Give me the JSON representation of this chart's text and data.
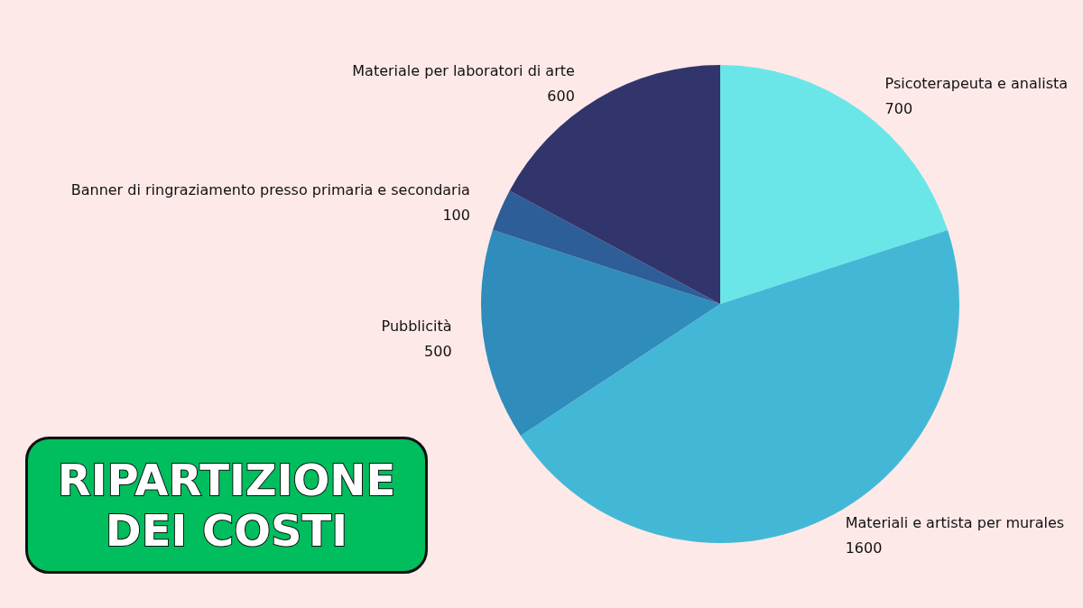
{
  "chart_data": {
    "type": "pie",
    "title": "RIPARTIZIONE DEI COSTI",
    "categories": [
      "Psicoterapeuta e analista",
      "Materiali e artista per murales",
      "Pubblicità",
      "Banner di ringraziamento presso primaria e secondaria",
      "Materiale per laboratori di arte"
    ],
    "values": [
      700,
      1600,
      500,
      100,
      600
    ],
    "colors": [
      "#6ae6e8",
      "#43b8d6",
      "#2f8cbb",
      "#2d5e98",
      "#32356b"
    ],
    "data_labels": true,
    "legend": false
  }
}
